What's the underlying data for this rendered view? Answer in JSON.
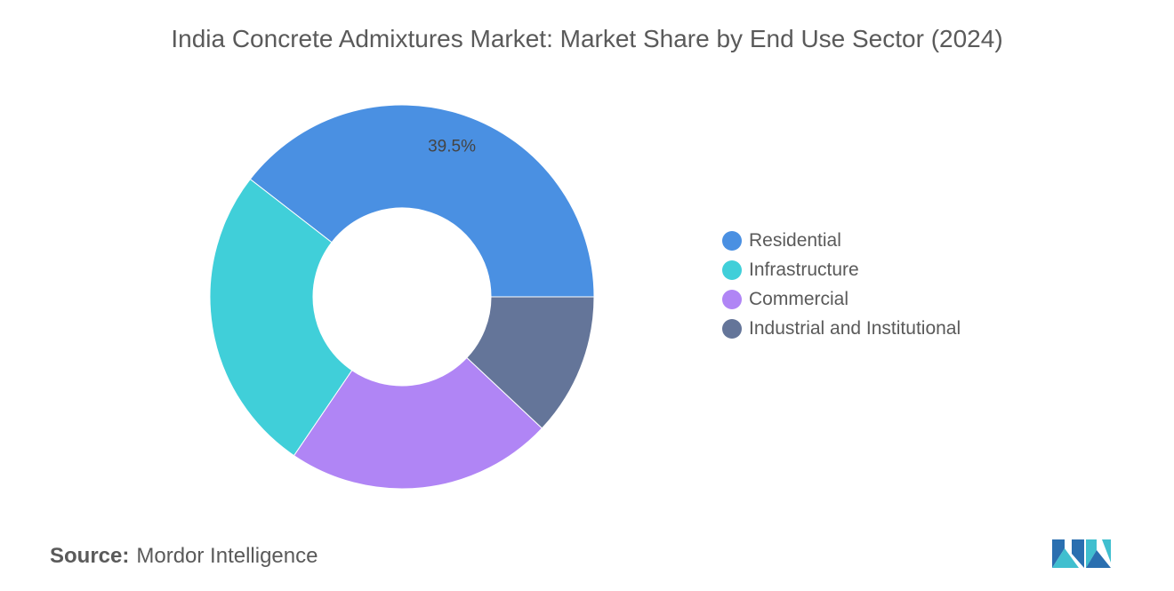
{
  "chart_data": {
    "type": "pie",
    "title": "India Concrete Admixtures Market: Market Share by End Use Sector (2024)",
    "categories": [
      "Residential",
      "Infrastructure",
      "Commercial",
      "Industrial and Institutional"
    ],
    "values": [
      39.5,
      26.0,
      22.5,
      12.0
    ],
    "colors": [
      "#4a90e2",
      "#40cfd9",
      "#b085f5",
      "#647599"
    ],
    "data_labels": [
      "39.5%",
      "",
      "",
      ""
    ],
    "donut": true,
    "legend_position": "right"
  },
  "source": {
    "label": "Source:",
    "value": "Mordor Intelligence"
  },
  "logo": {
    "icon": "mordor-intelligence-logo"
  }
}
